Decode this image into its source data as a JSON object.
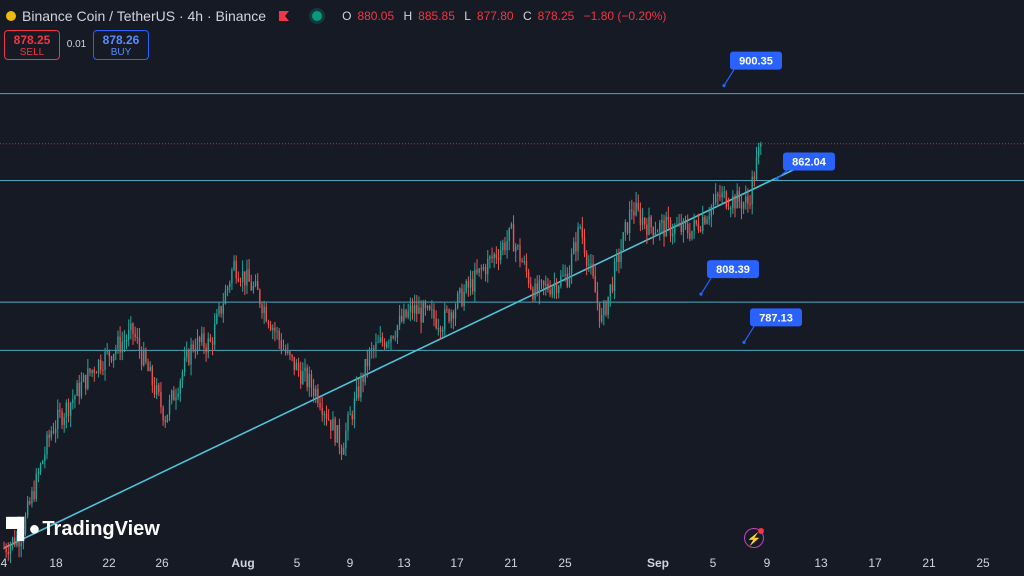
{
  "header": {
    "title": "Binance Coin / TetherUS · 4h · Binance",
    "ohlc": {
      "o_label": "O",
      "o": "880.05",
      "h_label": "H",
      "h": "885.85",
      "l_label": "L",
      "l": "877.80",
      "c_label": "C",
      "c": "878.25",
      "change": "−1.80 (−0.20%)"
    }
  },
  "trade": {
    "sell_price": "878.25",
    "sell_label": "SELL",
    "spread": "0.01",
    "buy_price": "878.26",
    "buy_label": "BUY"
  },
  "branding": {
    "logo_text": "TradingView"
  },
  "colors": {
    "background": "#161a25",
    "up": "#26a69a",
    "down": "#ef5350",
    "line": "#4fc3d9",
    "callout": "#2962ff",
    "last_price": "#f23645"
  },
  "chart_data": {
    "type": "candlestick",
    "symbol": "BNBUSDT",
    "timeframe": "4h",
    "x_ticks": [
      "4",
      "18",
      "22",
      "26",
      "Aug",
      "5",
      "9",
      "13",
      "17",
      "21",
      "25",
      "Sep",
      "5",
      "9",
      "13",
      "17",
      "21",
      "25"
    ],
    "x_ticks_bold": [
      "Aug",
      "Sep"
    ],
    "price_range": [
      700,
      935
    ],
    "last_price": 878.25,
    "horizontal_levels": [
      {
        "price": 900.35,
        "label": "900.35"
      },
      {
        "price": 862.04,
        "label": "862.04"
      },
      {
        "price": 808.39,
        "label": "808.39"
      },
      {
        "price": 787.13,
        "label": "787.13"
      }
    ],
    "trendline": {
      "from": {
        "bar": 0,
        "price": 700
      },
      "to": {
        "bar": 370,
        "price": 868
      }
    },
    "bar_count": 352,
    "anchors": [
      [
        0,
        700
      ],
      [
        8,
        706
      ],
      [
        22,
        752
      ],
      [
        42,
        780
      ],
      [
        60,
        795
      ],
      [
        75,
        758
      ],
      [
        88,
        790
      ],
      [
        96,
        790
      ],
      [
        107,
        825
      ],
      [
        118,
        812
      ],
      [
        132,
        784
      ],
      [
        146,
        768
      ],
      [
        157,
        745
      ],
      [
        170,
        785
      ],
      [
        190,
        805
      ],
      [
        204,
        800
      ],
      [
        222,
        822
      ],
      [
        236,
        838
      ],
      [
        247,
        812
      ],
      [
        262,
        820
      ],
      [
        268,
        842
      ],
      [
        278,
        800
      ],
      [
        292,
        850
      ],
      [
        300,
        842
      ],
      [
        320,
        840
      ],
      [
        333,
        855
      ],
      [
        346,
        852
      ],
      [
        352,
        878.25
      ]
    ],
    "notes": "anchors are [bar index, approximate price] used to reproduce the visible price path"
  }
}
